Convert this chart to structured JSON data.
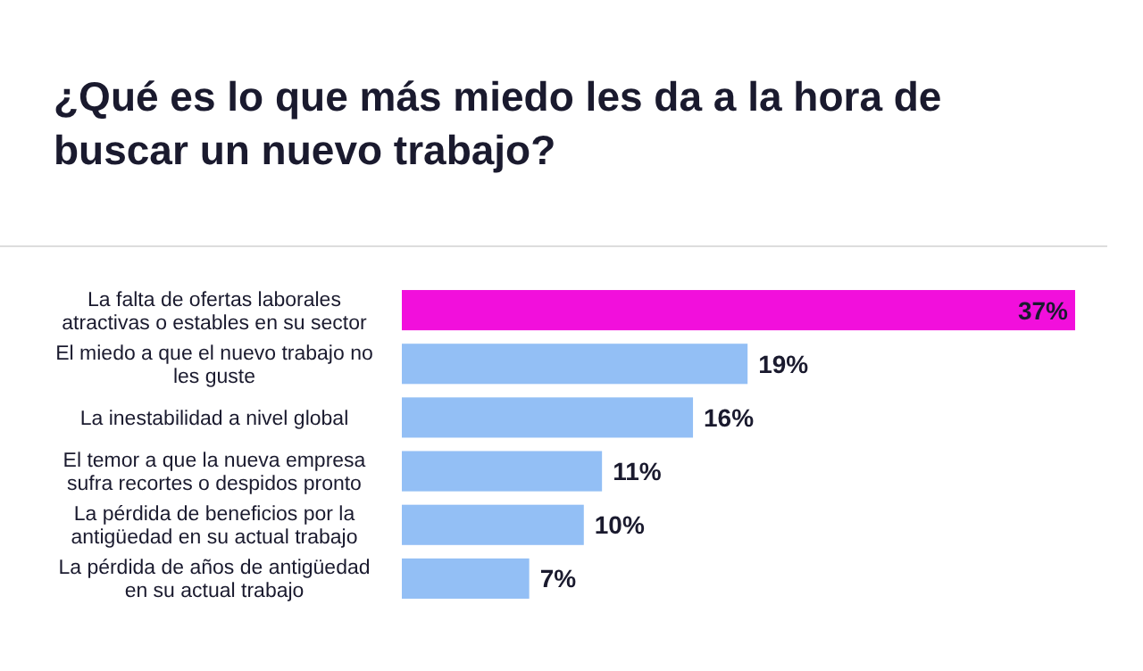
{
  "chart_data": {
    "type": "bar",
    "orientation": "horizontal",
    "title": "¿Qué es lo que más miedo les da a la hora de buscar un nuevo trabajo?",
    "categories": [
      "La falta de ofertas laborales atractivas o estables en su sector",
      "El miedo a que el nuevo trabajo no les guste",
      "La inestabilidad a nivel global",
      "El temor a que la nueva empresa sufra recortes o despidos pronto",
      "La pérdida de beneficios por la antigüedad en su actual trabajo",
      "La pérdida de años de antigüedad en su actual trabajo"
    ],
    "values": [
      37,
      19,
      16,
      11,
      10,
      7
    ],
    "value_labels": [
      "37%",
      "19%",
      "16%",
      "11%",
      "10%",
      "7%"
    ],
    "colors": [
      "#f20fdc",
      "#93bff5",
      "#93bff5",
      "#93bff5",
      "#93bff5",
      "#93bff5"
    ]
  }
}
